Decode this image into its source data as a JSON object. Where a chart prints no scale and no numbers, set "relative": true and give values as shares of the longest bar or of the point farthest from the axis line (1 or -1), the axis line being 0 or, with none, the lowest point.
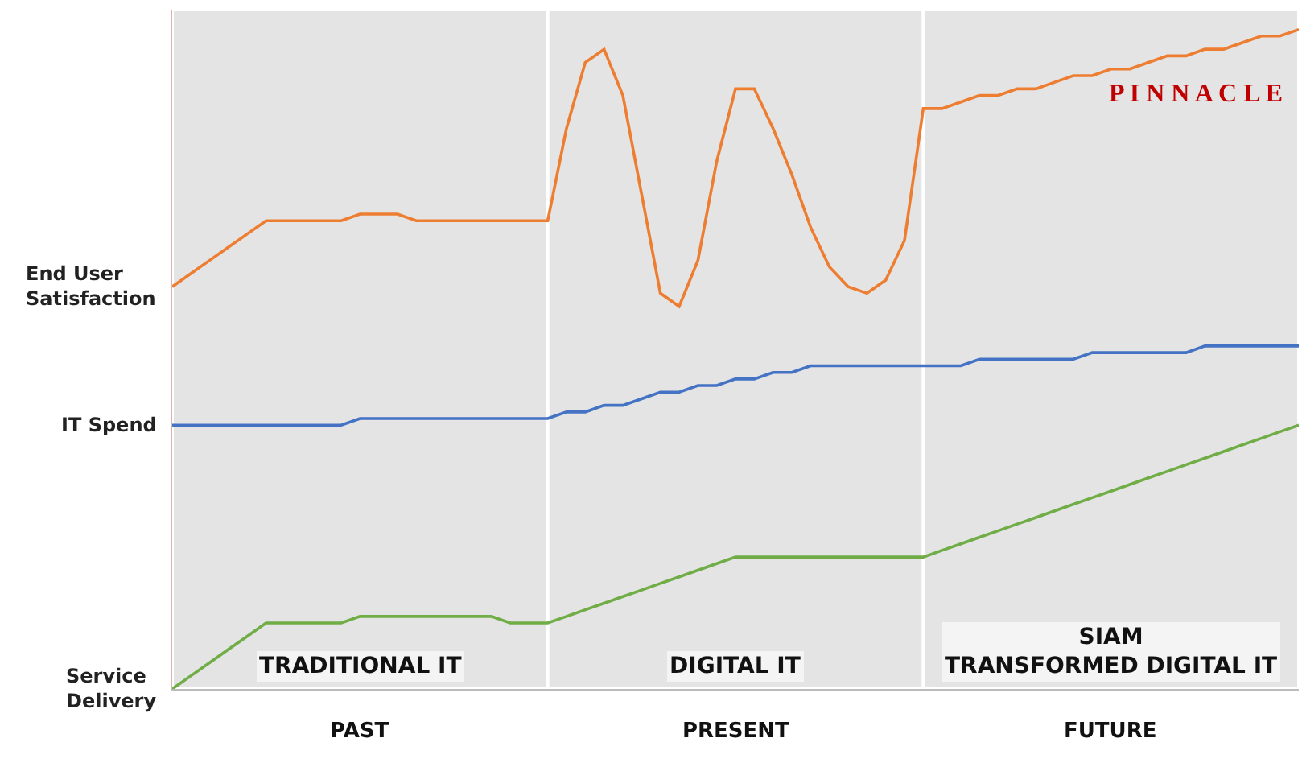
{
  "chart_data": {
    "type": "line",
    "relative": true,
    "categories": [
      null,
      null,
      null,
      null,
      null,
      null,
      null,
      null,
      null,
      null,
      null,
      null,
      null,
      null,
      null,
      null,
      null,
      null,
      null,
      null,
      null,
      null,
      null,
      null,
      null,
      null,
      null,
      null,
      null,
      null,
      null,
      null,
      null,
      null,
      null,
      null,
      null,
      null,
      null,
      null,
      null,
      null,
      null,
      null,
      null,
      null,
      null,
      null,
      null,
      null,
      null,
      null,
      null,
      null,
      null,
      null,
      null,
      null,
      null,
      null,
      null
    ],
    "series": [
      {
        "name": "End User Satisfaction",
        "color": "#ed7d31",
        "values": [
          0.61,
          0.63,
          0.65,
          0.67,
          0.69,
          0.71,
          0.71,
          0.71,
          0.71,
          0.71,
          0.72,
          0.72,
          0.72,
          0.71,
          0.71,
          0.71,
          0.71,
          0.71,
          0.71,
          0.71,
          0.71,
          0.85,
          0.95,
          0.97,
          0.9,
          0.75,
          0.6,
          0.58,
          0.65,
          0.8,
          0.91,
          0.91,
          0.85,
          0.78,
          0.7,
          0.64,
          0.61,
          0.6,
          0.62,
          0.68,
          0.88,
          0.88,
          0.89,
          0.9,
          0.9,
          0.91,
          0.91,
          0.92,
          0.93,
          0.93,
          0.94,
          0.94,
          0.95,
          0.96,
          0.96,
          0.97,
          0.97,
          0.98,
          0.99,
          0.99,
          1.0
        ]
      },
      {
        "name": "IT Spend",
        "color": "#4472c4",
        "values": [
          0.4,
          0.4,
          0.4,
          0.4,
          0.4,
          0.4,
          0.4,
          0.4,
          0.4,
          0.4,
          0.41,
          0.41,
          0.41,
          0.41,
          0.41,
          0.41,
          0.41,
          0.41,
          0.41,
          0.41,
          0.41,
          0.42,
          0.42,
          0.43,
          0.43,
          0.44,
          0.45,
          0.45,
          0.46,
          0.46,
          0.47,
          0.47,
          0.48,
          0.48,
          0.49,
          0.49,
          0.49,
          0.49,
          0.49,
          0.49,
          0.49,
          0.49,
          0.49,
          0.5,
          0.5,
          0.5,
          0.5,
          0.5,
          0.5,
          0.51,
          0.51,
          0.51,
          0.51,
          0.51,
          0.51,
          0.52,
          0.52,
          0.52,
          0.52,
          0.52,
          0.52
        ]
      },
      {
        "name": "Service Delivery",
        "color": "#70ad47",
        "values": [
          0.0,
          0.02,
          0.04,
          0.06,
          0.08,
          0.1,
          0.1,
          0.1,
          0.1,
          0.1,
          0.11,
          0.11,
          0.11,
          0.11,
          0.11,
          0.11,
          0.11,
          0.11,
          0.1,
          0.1,
          0.1,
          0.11,
          0.12,
          0.13,
          0.14,
          0.15,
          0.16,
          0.17,
          0.18,
          0.19,
          0.2,
          0.2,
          0.2,
          0.2,
          0.2,
          0.2,
          0.2,
          0.2,
          0.2,
          0.2,
          0.2,
          0.21,
          0.22,
          0.23,
          0.24,
          0.25,
          0.26,
          0.27,
          0.28,
          0.29,
          0.3,
          0.31,
          0.32,
          0.33,
          0.34,
          0.35,
          0.36,
          0.37,
          0.38,
          0.39,
          0.4
        ]
      }
    ],
    "annotations": [
      "TRADITIONAL IT",
      "DIGITAL IT",
      "SIAM\nTRANSFORMED DIGITAL IT",
      "PAST",
      "PRESENT",
      "FUTURE",
      "P I N N A C L E"
    ],
    "grid": false,
    "legend": false,
    "marker": "none",
    "line_style": "solid"
  }
}
